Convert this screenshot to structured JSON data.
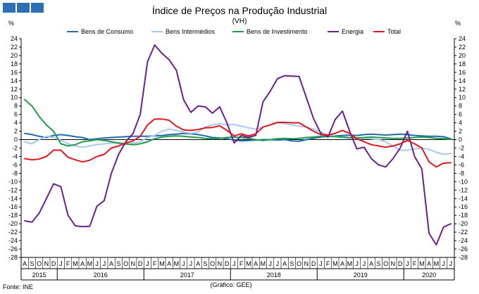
{
  "colors": {
    "background": "#ffffff",
    "logo": "#2e6fb3",
    "bens_consumo": "#1f6bb0",
    "bens_intermedios": "#a8c8ec",
    "bens_investimento": "#1e9b4b",
    "energia": "#6b1f8f",
    "total": "#e0171c"
  },
  "chart_data": {
    "type": "line",
    "title": "Índice de Preços na Produção Industrial",
    "subtitle": "(VH)",
    "ylabel_left": "%",
    "ylabel_right": "%",
    "ylim": [
      -28,
      24
    ],
    "yticks": [
      24,
      22,
      20,
      18,
      16,
      14,
      12,
      10,
      8,
      6,
      4,
      2,
      0,
      -2,
      -4,
      -6,
      -8,
      -10,
      -12,
      -14,
      -16,
      -18,
      -20,
      -22,
      -24,
      -26,
      -28
    ],
    "legend_position": "top",
    "months": [
      "A",
      "S",
      "O",
      "N",
      "D",
      "J",
      "F",
      "M",
      "A",
      "M",
      "J",
      "J",
      "A",
      "S",
      "O",
      "N",
      "D",
      "J",
      "F",
      "M",
      "A",
      "M",
      "J",
      "J",
      "A",
      "S",
      "O",
      "N",
      "D",
      "J",
      "F",
      "M",
      "A",
      "M",
      "J",
      "J",
      "A",
      "S",
      "O",
      "N",
      "D",
      "J",
      "F",
      "M",
      "A",
      "M",
      "J",
      "J",
      "A",
      "S",
      "O",
      "N",
      "D",
      "J",
      "F",
      "M",
      "A",
      "M",
      "J",
      "J"
    ],
    "years": [
      {
        "label": "2015",
        "start": 0,
        "count": 5
      },
      {
        "label": "2016",
        "start": 5,
        "count": 12
      },
      {
        "label": "2017",
        "start": 17,
        "count": 12
      },
      {
        "label": "2018",
        "start": 29,
        "count": 12
      },
      {
        "label": "2019",
        "start": 41,
        "count": 12
      },
      {
        "label": "2020",
        "start": 53,
        "count": 7
      }
    ],
    "series": [
      {
        "name": "Bens de Consumo",
        "color": "#1f6bb0",
        "values": [
          1.5,
          1.2,
          0.8,
          0.5,
          1.0,
          1.2,
          1.0,
          0.7,
          0.5,
          0.0,
          0.2,
          0.4,
          0.5,
          0.6,
          0.7,
          0.8,
          0.8,
          0.8,
          0.9,
          1.0,
          1.2,
          1.3,
          1.5,
          1.4,
          1.2,
          0.9,
          0.5,
          0.4,
          0.2,
          -0.1,
          -0.3,
          -0.2,
          -0.1,
          0.0,
          0.0,
          -0.1,
          0.0,
          -0.3,
          -0.4,
          0.0,
          0.3,
          0.6,
          0.8,
          0.9,
          1.0,
          1.1,
          1.0,
          1.2,
          1.3,
          1.2,
          1.1,
          1.2,
          1.3,
          1.2,
          1.0,
          0.9,
          0.8,
          0.8,
          0.7,
          0.2
        ]
      },
      {
        "name": "Bens Intermédios",
        "color": "#a8c8ec",
        "values": [
          -0.5,
          -1.0,
          0.0,
          0.8,
          0.5,
          -0.2,
          -1.0,
          -1.5,
          -1.8,
          -1.5,
          -1.2,
          -1.0,
          -0.8,
          -1.0,
          -1.2,
          -0.8,
          -0.5,
          0.5,
          1.0,
          2.0,
          2.5,
          2.2,
          1.8,
          1.5,
          1.8,
          3.0,
          3.5,
          3.8,
          3.5,
          3.6,
          3.2,
          2.8,
          2.5,
          3.0,
          3.5,
          4.0,
          3.8,
          3.5,
          3.2,
          3.0,
          2.5,
          1.8,
          1.2,
          0.8,
          0.5,
          0.3,
          0.2,
          0.3,
          0.2,
          0.0,
          -0.5,
          -1.5,
          -2.5,
          -2.5,
          -2.2,
          -2.0,
          -2.3,
          -3.0,
          -3.5,
          -3.3
        ]
      },
      {
        "name": "Bens de Investimento",
        "color": "#1e9b4b",
        "values": [
          9.5,
          8.0,
          5.5,
          3.5,
          2.0,
          -1.0,
          -1.5,
          -1.2,
          -0.5,
          -0.3,
          0.0,
          -0.2,
          -0.5,
          -0.8,
          -1.0,
          -1.2,
          -1.0,
          -0.5,
          0.2,
          0.6,
          0.8,
          0.9,
          0.8,
          0.6,
          0.5,
          0.3,
          0.2,
          0.3,
          0.5,
          0.6,
          0.5,
          0.3,
          0.0,
          -0.2,
          0.0,
          0.2,
          0.3,
          0.2,
          0.3,
          0.5,
          0.6,
          0.8,
          0.8,
          0.7,
          0.6,
          0.5,
          0.4,
          0.5,
          0.6,
          0.5,
          0.4,
          0.3,
          0.3,
          0.4,
          0.5,
          0.6,
          0.5,
          0.3,
          0.2,
          0.1
        ]
      },
      {
        "name": "Energia",
        "color": "#6b1f8f",
        "values": [
          -19.3,
          -19.6,
          -17.5,
          -14.0,
          -10.5,
          -11.2,
          -18.0,
          -20.5,
          -20.7,
          -20.6,
          -15.8,
          -14.5,
          -8.0,
          -3.5,
          -0.5,
          1.5,
          6.0,
          18.5,
          22.5,
          20.5,
          19.0,
          16.5,
          9.5,
          6.5,
          8.0,
          7.8,
          6.3,
          7.8,
          4.0,
          -0.8,
          1.0,
          0.5,
          1.0,
          9.0,
          11.5,
          14.5,
          15.2,
          15.1,
          15.0,
          10.0,
          5.0,
          1.5,
          0.6,
          4.8,
          6.8,
          2.0,
          -2.2,
          -1.8,
          -4.5,
          -6.0,
          -6.5,
          -4.5,
          -2.0,
          2.0,
          -4.0,
          -7.0,
          -22.3,
          -25.0,
          -20.8,
          -20.0
        ]
      },
      {
        "name": "Total",
        "color": "#e0171c",
        "values": [
          -4.5,
          -4.8,
          -4.6,
          -4.0,
          -2.5,
          -2.5,
          -4.2,
          -4.8,
          -5.3,
          -4.9,
          -4.0,
          -3.5,
          -2.0,
          -1.5,
          -0.8,
          -0.3,
          0.8,
          3.5,
          4.9,
          4.9,
          4.6,
          3.2,
          2.3,
          2.2,
          2.4,
          2.8,
          2.9,
          3.3,
          2.2,
          0.9,
          1.4,
          0.9,
          1.4,
          3.0,
          3.5,
          4.1,
          4.1,
          4.0,
          4.0,
          3.0,
          2.0,
          1.2,
          1.1,
          1.5,
          2.2,
          1.5,
          0.2,
          -0.5,
          -1.2,
          -1.5,
          -1.8,
          -1.5,
          -1.0,
          -0.2,
          -1.0,
          -2.0,
          -5.3,
          -6.5,
          -5.6,
          -5.5
        ]
      }
    ]
  },
  "footer": {
    "source": "Fonte: INE",
    "credit": "(Gráfico: GEE)"
  }
}
